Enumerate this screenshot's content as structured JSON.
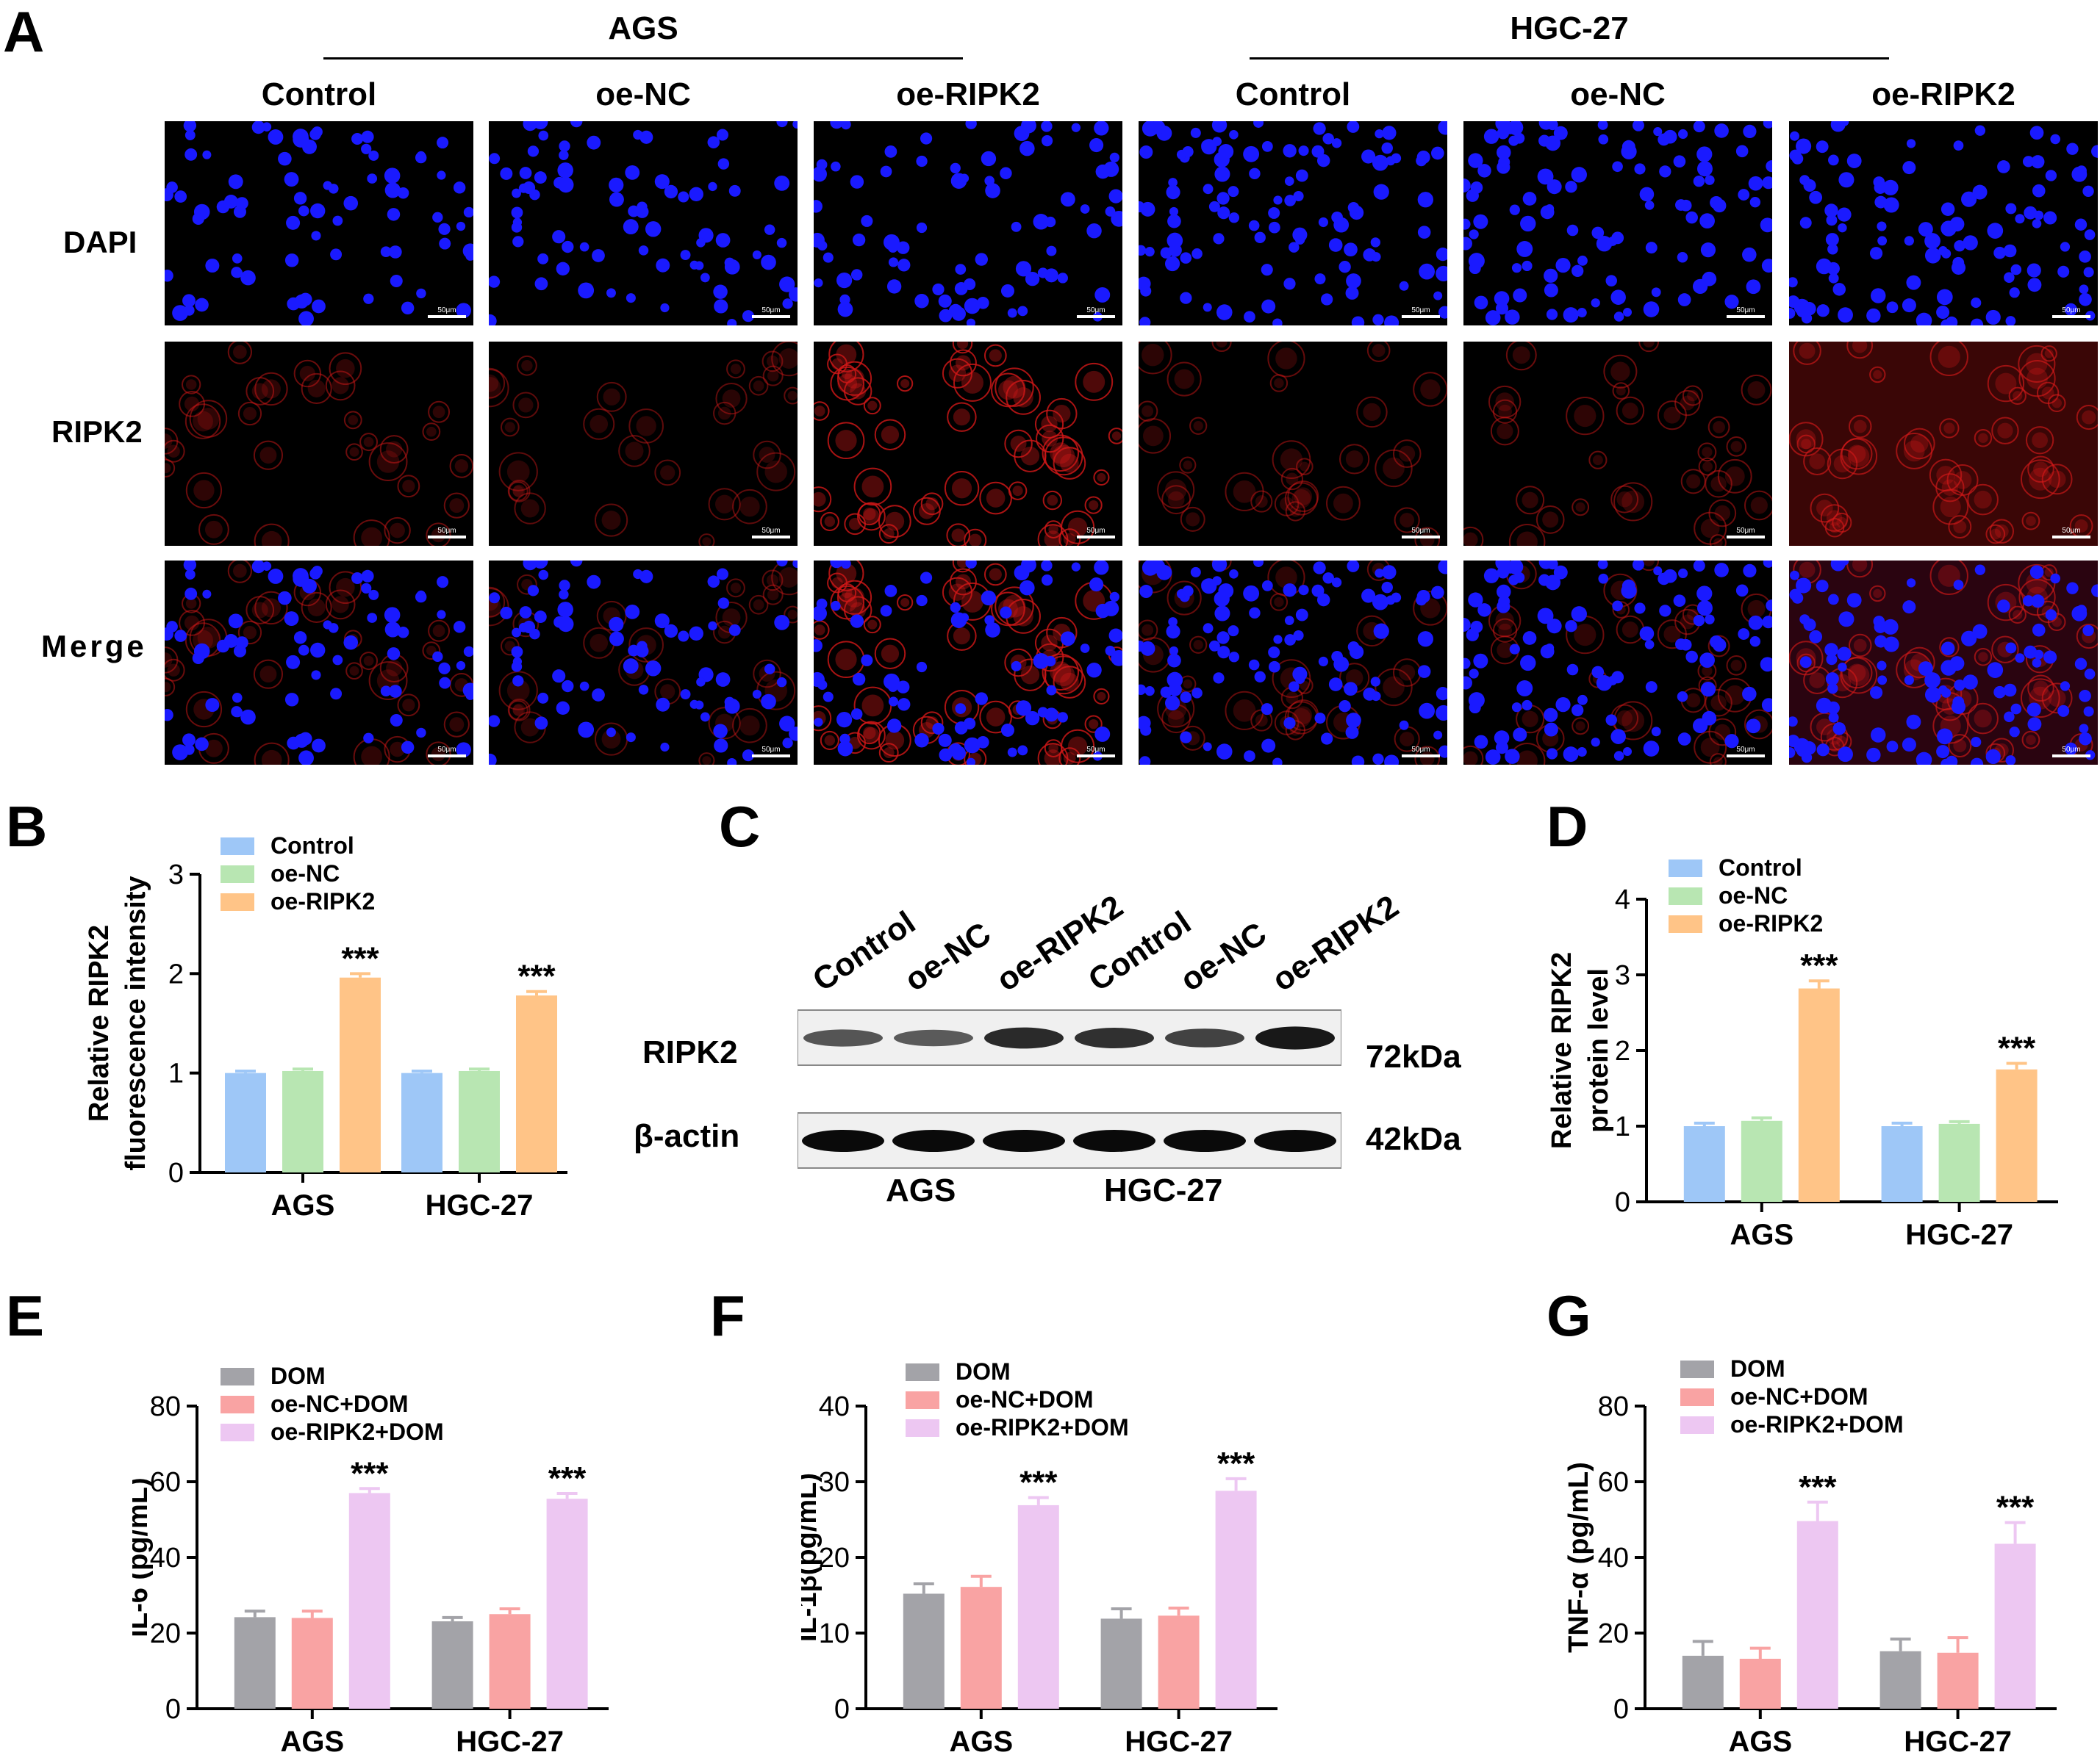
{
  "panel_a": {
    "letter": "A",
    "groups": [
      "AGS",
      "HGC-27"
    ],
    "conditions": [
      "Control",
      "oe-NC",
      "oe-RIPK2",
      "Control",
      "oe-NC",
      "oe-RIPK2"
    ],
    "rows": [
      "DAPI",
      "RIPK2",
      "Merge"
    ],
    "scale_bar": "50μm",
    "colors": {
      "dapi": "#1a1aff",
      "ripk2": "#d01818"
    }
  },
  "panel_b": {
    "letter": "B"
  },
  "panel_c": {
    "letter": "C",
    "lanes": [
      "Control",
      "oe-NC",
      "oe-RIPK2",
      "Control",
      "oe-NC",
      "oe-RIPK2"
    ],
    "bands": [
      {
        "name": "RIPK2",
        "size": "72kDa"
      },
      {
        "name": "β-actin",
        "size": "42kDa"
      }
    ],
    "groups": [
      "AGS",
      "HGC-27"
    ]
  },
  "panel_d": {
    "letter": "D"
  },
  "panel_e": {
    "letter": "E"
  },
  "panel_f": {
    "letter": "F"
  },
  "panel_g": {
    "letter": "G"
  },
  "chart_data": [
    {
      "id": "B",
      "type": "bar",
      "categories": [
        "AGS",
        "HGC-27"
      ],
      "series": [
        {
          "name": "Control",
          "values": [
            1.0,
            1.0
          ],
          "errors": [
            0.02,
            0.02
          ],
          "color": "#9ec7f7"
        },
        {
          "name": "oe-NC",
          "values": [
            1.02,
            1.02
          ],
          "errors": [
            0.02,
            0.02
          ],
          "color": "#b8e6b2"
        },
        {
          "name": "oe-RIPK2",
          "values": [
            1.96,
            1.78
          ],
          "errors": [
            0.04,
            0.04
          ],
          "color": "#ffc487"
        }
      ],
      "significance": [
        "***",
        "***"
      ],
      "ylabel": [
        "Relative RIPK2",
        "fluorescence intensity"
      ],
      "ylim": [
        0,
        3
      ],
      "yticks": [
        0,
        1,
        2,
        3
      ]
    },
    {
      "id": "D",
      "type": "bar",
      "categories": [
        "AGS",
        "HGC-27"
      ],
      "series": [
        {
          "name": "Control",
          "values": [
            1.0,
            1.0
          ],
          "errors": [
            0.04,
            0.04
          ],
          "color": "#9ec7f7"
        },
        {
          "name": "oe-NC",
          "values": [
            1.07,
            1.03
          ],
          "errors": [
            0.04,
            0.03
          ],
          "color": "#b8e6b2"
        },
        {
          "name": "oe-RIPK2",
          "values": [
            2.82,
            1.75
          ],
          "errors": [
            0.1,
            0.08
          ],
          "color": "#ffc487"
        }
      ],
      "significance": [
        "***",
        "***"
      ],
      "ylabel": [
        "Relative RIPK2",
        "protein level"
      ],
      "ylim": [
        0,
        4
      ],
      "yticks": [
        0,
        1,
        2,
        3,
        4
      ]
    },
    {
      "id": "E",
      "type": "bar",
      "categories": [
        "AGS",
        "HGC-27"
      ],
      "series": [
        {
          "name": "DOM",
          "values": [
            24.2,
            23.1
          ],
          "errors": [
            1.6,
            1.0
          ],
          "color": "#a3a3a8"
        },
        {
          "name": "oe-NC+DOM",
          "values": [
            24.0,
            25.0
          ],
          "errors": [
            1.8,
            1.4
          ],
          "color": "#f9a3a3"
        },
        {
          "name": "oe-RIPK2+DOM",
          "values": [
            57.0,
            55.5
          ],
          "errors": [
            1.2,
            1.4
          ],
          "color": "#edc7f2"
        }
      ],
      "significance": [
        "***",
        "***"
      ],
      "ylabel": [
        "IL-6 (pg/mL)"
      ],
      "ylim": [
        0,
        80
      ],
      "yticks": [
        0,
        20,
        40,
        60,
        80
      ]
    },
    {
      "id": "F",
      "type": "bar",
      "categories": [
        "AGS",
        "HGC-27"
      ],
      "series": [
        {
          "name": "DOM",
          "values": [
            15.2,
            11.9
          ],
          "errors": [
            1.3,
            1.3
          ],
          "color": "#a3a3a8"
        },
        {
          "name": "oe-NC+DOM",
          "values": [
            16.1,
            12.3
          ],
          "errors": [
            1.4,
            1.0
          ],
          "color": "#f9a3a3"
        },
        {
          "name": "oe-RIPK2+DOM",
          "values": [
            26.9,
            28.8
          ],
          "errors": [
            1.0,
            1.6
          ],
          "color": "#edc7f2"
        }
      ],
      "significance": [
        "***",
        "***"
      ],
      "ylabel": [
        "IL-1β(pg/mL)"
      ],
      "ylim": [
        0,
        40
      ],
      "yticks": [
        0,
        10,
        20,
        30,
        40
      ]
    },
    {
      "id": "G",
      "type": "bar",
      "categories": [
        "AGS",
        "HGC-27"
      ],
      "series": [
        {
          "name": "DOM",
          "values": [
            14.0,
            15.2
          ],
          "errors": [
            3.8,
            3.2
          ],
          "color": "#a3a3a8"
        },
        {
          "name": "oe-NC+DOM",
          "values": [
            13.2,
            14.8
          ],
          "errors": [
            2.8,
            4.0
          ],
          "color": "#f9a3a3"
        },
        {
          "name": "oe-RIPK2+DOM",
          "values": [
            49.6,
            43.6
          ],
          "errors": [
            5.0,
            5.6
          ],
          "color": "#edc7f2"
        }
      ],
      "significance": [
        "***",
        "***"
      ],
      "ylabel": [
        "TNF-α (pg/mL)"
      ],
      "ylim": [
        0,
        80
      ],
      "yticks": [
        0,
        20,
        40,
        60,
        80
      ]
    }
  ]
}
